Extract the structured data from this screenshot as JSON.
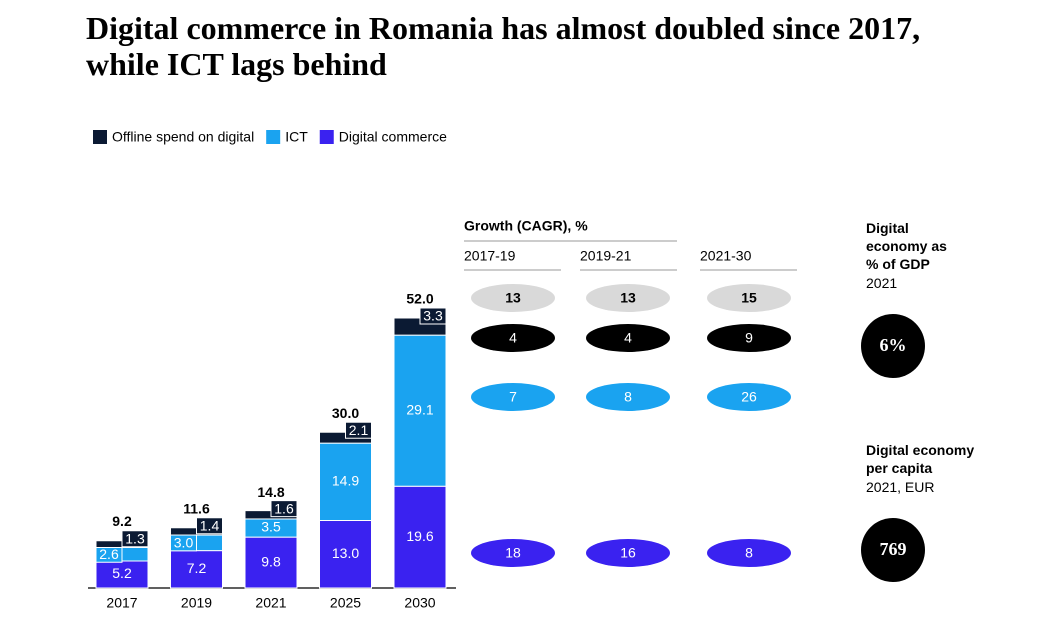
{
  "chart_data": {
    "type": "stacked_bar",
    "title": "Digital commerce in Romania has almost doubled since 2017, while ICT lags behind",
    "categories": [
      "2017",
      "2019",
      "2021",
      "2025",
      "2030"
    ],
    "series": [
      {
        "name": "Offline spend on digital",
        "color": "#0b1a33",
        "values": [
          1.3,
          1.4,
          1.6,
          2.1,
          3.3
        ],
        "value_labels": [
          "1.3",
          "1.4",
          "1.6",
          "2.1",
          "3.3"
        ]
      },
      {
        "name": "ICT",
        "color": "#1aa3f0",
        "values": [
          2.6,
          3.0,
          3.5,
          14.9,
          29.1
        ],
        "value_labels": [
          "2.6",
          "3.0",
          "3.5",
          "14.9",
          "29.1"
        ]
      },
      {
        "name": "Digital commerce",
        "color": "#3a22f0",
        "values": [
          5.2,
          7.2,
          9.8,
          13.0,
          19.6
        ],
        "value_labels": [
          "5.2",
          "7.2",
          "9.8",
          "13.0",
          "19.6"
        ]
      }
    ],
    "totals": [
      9.2,
      11.6,
      14.8,
      30.0,
      52.0
    ],
    "totals_labels": [
      "9.2",
      "11.6",
      "14.8",
      "30.0",
      "52.0"
    ],
    "growth": {
      "title": "Growth (CAGR), %",
      "periods": [
        "2017-19",
        "2019-21",
        "2021-30"
      ],
      "rows": [
        {
          "color": "#d9d9d9",
          "values": [
            13,
            13,
            15
          ]
        },
        {
          "color": "#000000",
          "values": [
            4,
            4,
            9
          ]
        },
        {
          "color": "#1aa3f0",
          "values": [
            7,
            8,
            26
          ]
        },
        {
          "color": "#3a22f0",
          "values": [
            18,
            16,
            8
          ]
        }
      ]
    },
    "gdp_share": {
      "title": "Digital economy as % of GDP",
      "subtitle": "2021",
      "value": 6,
      "value_label": "6%"
    },
    "per_capita": {
      "title": "Digital economy per capita",
      "subtitle": "2021, EUR",
      "value": 769
    }
  }
}
